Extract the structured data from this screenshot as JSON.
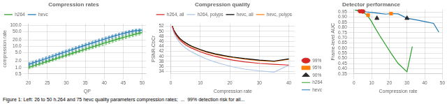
{
  "chart_data": [
    {
      "type": "line",
      "title": "Compression rates",
      "xlabel": "QP",
      "ylabel": "compression rate",
      "x": [
        20,
        22,
        24,
        26,
        28,
        30,
        32,
        34,
        36,
        38,
        40,
        42,
        44,
        46,
        48,
        50
      ],
      "series": [
        {
          "color": "#2ca02c",
          "line_style": "dashed",
          "values": [
            0.85,
            1.1,
            1.45,
            1.9,
            2.5,
            3.2,
            4.2,
            5.5,
            7.0,
            9.0,
            11.5,
            15.0,
            19.5,
            24.5,
            31.0,
            38.0
          ]
        },
        {
          "color": "#1f77b4",
          "line_style": "dashed",
          "values": [
            1.15,
            1.5,
            2.0,
            2.65,
            3.5,
            4.7,
            6.2,
            8.2,
            10.7,
            14.0,
            18.0,
            24.0,
            30.5,
            38.0,
            47.0,
            51.0
          ]
        },
        {
          "color": "#2ca02c",
          "line_style": "dashed",
          "values": [
            0.92,
            1.19,
            1.56,
            2.04,
            2.68,
            3.46,
            4.54,
            5.92,
            7.6,
            9.8,
            12.7,
            16.6,
            21.4,
            26.9,
            34,
            41.4
          ]
        },
        {
          "color": "#1f77b4",
          "line_style": "dashed",
          "values": [
            1.26,
            1.65,
            2.19,
            2.9,
            3.84,
            5.14,
            6.78,
            9,
            11.76,
            15.4,
            19.8,
            26.2,
            33.2,
            41.4,
            50.8,
            54.8
          ]
        },
        {
          "color": "#2ca02c",
          "line_style": "dashed",
          "values": [
            0.99,
            1.28,
            1.67,
            2.18,
            2.86,
            3.72,
            4.88,
            6.34,
            8.2,
            10.6,
            13.9,
            18.2,
            23.3,
            29.3,
            37,
            44.8
          ]
        },
        {
          "color": "#1f77b4",
          "line_style": "dashed",
          "values": [
            1.37,
            1.8,
            2.38,
            3.15,
            4.18,
            5.58,
            7.36,
            9.8,
            12.82,
            16.8,
            21.6,
            28.4,
            35.9,
            44.8,
            54.6,
            58.6
          ]
        },
        {
          "color": "#2ca02c",
          "line_style": "dashed",
          "values": [
            1.06,
            1.37,
            1.78,
            2.32,
            3.04,
            3.98,
            5.22,
            6.76,
            8.8,
            11.4,
            15.1,
            19.8,
            25.2,
            31.7,
            40,
            48.2
          ]
        },
        {
          "color": "#1f77b4",
          "line_style": "dashed",
          "values": [
            1.48,
            1.95,
            2.57,
            3.4,
            4.52,
            6.02,
            7.94,
            10.6,
            13.88,
            18.2,
            23.4,
            30.6,
            38.6,
            48.2,
            58.4,
            62.4
          ]
        },
        {
          "color": "#2ca02c",
          "line_style": "dashed",
          "values": [
            1.13,
            1.46,
            1.89,
            2.46,
            3.22,
            4.24,
            5.56,
            7.18,
            9.4,
            12.2,
            16.3,
            21.4,
            27.1,
            34.1,
            43,
            51.6
          ]
        },
        {
          "color": "#1f77b4",
          "line_style": "dashed",
          "values": [
            1.59,
            2.1,
            2.76,
            3.65,
            4.86,
            6.46,
            8.52,
            11.4,
            14.94,
            19.6,
            25.2,
            32.8,
            41.3,
            51.6,
            62.2,
            66.2
          ]
        },
        {
          "color": "#2ca02c",
          "line_style": "dashed",
          "values": [
            1.2,
            1.55,
            2.0,
            2.6,
            3.4,
            4.5,
            5.9,
            7.6,
            10.0,
            13.0,
            17.5,
            23.0,
            29.0,
            36.5,
            46.0,
            55.0
          ]
        },
        {
          "color": "#1f77b4",
          "line_style": "dashed",
          "values": [
            1.7,
            2.25,
            2.95,
            3.9,
            5.2,
            6.9,
            9.1,
            12.2,
            16.0,
            21.0,
            27.0,
            35.0,
            44.0,
            55.0,
            66.0,
            70.0
          ]
        },
        {
          "name": "h264",
          "color": "#2ca02c",
          "values": [
            1.0,
            1.3,
            1.7,
            2.2,
            2.9,
            3.8,
            5.0,
            6.5,
            8.5,
            11.0,
            14.5,
            18.5,
            24.0,
            30.0,
            38.0,
            46.0
          ]
        },
        {
          "name": "hevc",
          "color": "#1f77b4",
          "values": [
            1.4,
            1.85,
            2.4,
            3.2,
            4.3,
            5.7,
            7.5,
            10.0,
            13.0,
            17.0,
            22.0,
            29.0,
            37.0,
            46.0,
            56.0,
            60.0
          ]
        }
      ],
      "xlim": [
        20,
        51
      ],
      "xticks": [
        20,
        25,
        30,
        35,
        40,
        45,
        50
      ],
      "ylim": [
        0.5,
        120
      ],
      "yticks": [
        0.5,
        {
          "value": 1,
          "label": "1.0"
        },
        {
          "value": 2,
          "label": "2.0"
        },
        {
          "value": 5,
          "label": "5.0"
        },
        {
          "value": 10,
          "label": "10.0"
        },
        {
          "value": 20,
          "label": "20.0"
        },
        {
          "value": 50,
          "label": "50.0"
        },
        {
          "value": 100,
          "label": "100.0"
        }
      ],
      "log": "y",
      "grid": true,
      "legend": "upper left"
    },
    {
      "type": "line",
      "title": "Compression quality",
      "xlabel": "Compression rate",
      "ylabel": "PSNR-CbCr",
      "x": [
        0.5,
        1.0,
        1.5,
        2.0,
        3.0,
        4.0,
        5.0,
        6.0,
        7.0,
        8.0,
        10.0,
        12.0,
        15.0,
        18.0,
        21.0,
        25.0,
        30.0,
        35.0,
        40.0
      ],
      "series": [
        {
          "name": "h264, all",
          "color": "#d62728",
          "values": [
            52.0,
            50.2,
            49.0,
            48.0,
            46.5,
            45.5,
            44.6,
            43.9,
            43.3,
            42.8,
            41.8,
            41.0,
            40.0,
            39.2,
            38.5,
            37.8,
            37.2,
            36.8,
            36.5
          ]
        },
        {
          "name": "h264, polyps",
          "color": "#aec7e8",
          "values": [
            51.5,
            49.5,
            48.2,
            47.2,
            45.5,
            44.3,
            43.3,
            42.5,
            41.8,
            41.2,
            40.0,
            39.0,
            37.7,
            36.7,
            35.8,
            34.9,
            34.2,
            33.7,
            36.5
          ]
        },
        {
          "name": "hevc, all",
          "color": "#000000",
          "values": [
            52.1,
            50.5,
            49.5,
            48.6,
            47.2,
            46.2,
            45.4,
            44.7,
            44.1,
            43.6,
            42.7,
            41.9,
            41.0,
            40.3,
            39.7,
            39.1,
            38.5,
            38.1,
            39.0
          ]
        },
        {
          "name": "hevc, polyps",
          "color": "#ff7f0e",
          "values": [
            51.9,
            50.3,
            49.3,
            48.4,
            47.0,
            46.0,
            45.2,
            44.5,
            43.9,
            43.4,
            42.5,
            41.7,
            40.8,
            40.1,
            39.5,
            38.9,
            38.3,
            37.9,
            38.8
          ]
        }
      ],
      "xlim": [
        0,
        42
      ],
      "xticks": [
        0,
        10,
        20,
        30,
        40
      ],
      "ylim": [
        33,
        53
      ],
      "yticks": [
        34,
        36,
        38,
        40,
        42,
        44,
        46,
        48,
        50,
        52
      ],
      "grid": true,
      "legend": "upper right"
    },
    {
      "type": "line",
      "title": "Detector performance",
      "xlabel": "Compression rate",
      "ylabel": "Frame-level AUC",
      "series": [
        {
          "name": "h264",
          "color": "#2ca02c",
          "x": [
            0.5,
            1,
            2,
            3,
            4,
            5,
            6,
            7,
            8,
            9,
            10,
            12,
            15,
            18,
            21,
            25,
            30,
            33
          ],
          "values": [
            0.969,
            0.968,
            0.965,
            0.96,
            0.955,
            0.948,
            0.938,
            0.924,
            0.906,
            0.883,
            0.856,
            0.795,
            0.71,
            0.63,
            0.55,
            0.45,
            0.37,
            0.615
          ]
        },
        {
          "name": "hevc",
          "color": "#1f77b4",
          "x": [
            0.5,
            1,
            2,
            3,
            4,
            5,
            6,
            7,
            8,
            10,
            12,
            15,
            18,
            21,
            25,
            30,
            35,
            40,
            45,
            48
          ],
          "values": [
            0.97,
            0.969,
            0.966,
            0.963,
            0.96,
            0.957,
            0.955,
            0.952,
            0.95,
            0.946,
            0.942,
            0.936,
            0.93,
            0.935,
            0.932,
            0.89,
            0.875,
            0.858,
            0.84,
            0.755
          ]
        },
        {
          "name": "99%",
          "type": "scatter",
          "marker": "circle",
          "color": "#d62728",
          "x": [
            3.5,
            5.0
          ],
          "values": [
            0.961,
            0.957
          ]
        },
        {
          "name": "95%",
          "type": "scatter",
          "marker": "square",
          "color": "#ff7f0e",
          "x": [
            8.0,
            21.0
          ],
          "values": [
            0.921,
            0.935
          ]
        },
        {
          "name": "90%",
          "type": "scatter",
          "marker": "triangle",
          "color": "#2c2c2c",
          "x": [
            13.0,
            30.0
          ],
          "values": [
            0.89,
            0.89
          ]
        }
      ],
      "xlim": [
        0,
        50
      ],
      "xticks": [
        0,
        10,
        20,
        30,
        40,
        50
      ],
      "ylim": [
        0.35,
        0.975
      ],
      "yticks": [
        0.35,
        {
          "value": 0.4,
          "label": "0.40"
        },
        0.45,
        {
          "value": 0.5,
          "label": "0.50"
        },
        0.55,
        {
          "value": 0.6,
          "label": "0.60"
        },
        0.65,
        {
          "value": 0.7,
          "label": "0.70"
        },
        0.75,
        {
          "value": 0.8,
          "label": "0.80"
        },
        0.85,
        {
          "value": 0.9,
          "label": "0.90"
        },
        0.95
      ],
      "grid": true,
      "legend": "lower left"
    }
  ],
  "annotations": [
    "Figure 1: Left: 26 to 50 h.264 and 75 hevc quality parameters compression rates;  ...  99% detection risk for all..."
  ]
}
